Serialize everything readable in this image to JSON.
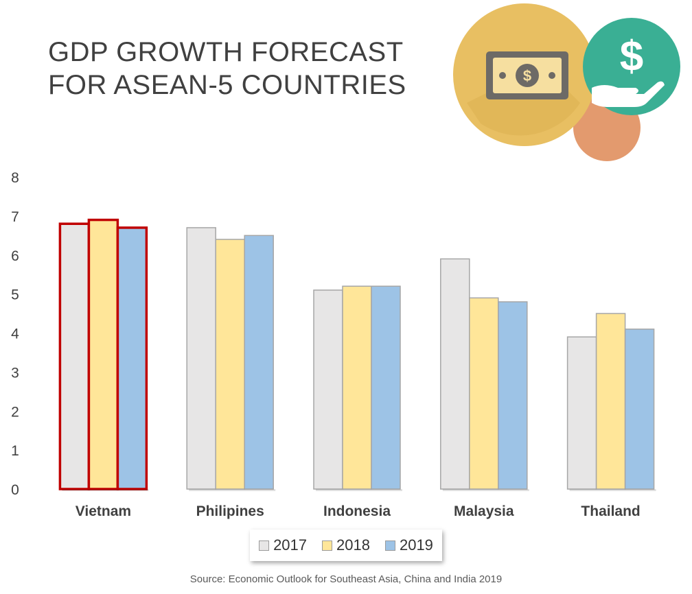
{
  "title": {
    "line1": "GDP GROWTH FORECAST",
    "line2": "FOR ASEAN-5 COUNTRIES"
  },
  "source": "Source: Economic Outlook for Southeast Asia, China and India 2019",
  "decoration": {
    "icons": [
      "banknote-dollar-icon",
      "hand-dollar-icon"
    ],
    "colors": [
      "#E8BF62",
      "#3AAF94",
      "#E39A6E"
    ]
  },
  "chart_data": {
    "type": "bar",
    "title": "GDP GROWTH FORECAST FOR ASEAN-5 COUNTRIES",
    "categories": [
      "Vietnam",
      "Philipines",
      "Indonesia",
      "Malaysia",
      "Thailand"
    ],
    "series": [
      {
        "name": "2017",
        "values": [
          6.8,
          6.7,
          5.1,
          5.9,
          3.9
        ],
        "color": "#E7E6E6"
      },
      {
        "name": "2018",
        "values": [
          6.9,
          6.4,
          5.2,
          4.9,
          4.5
        ],
        "color": "#FFE699"
      },
      {
        "name": "2019",
        "values": [
          6.7,
          6.5,
          5.2,
          4.8,
          4.1
        ],
        "color": "#9DC3E6"
      }
    ],
    "ylim": [
      0,
      8
    ],
    "yticks": [
      "0",
      "1",
      "2",
      "3",
      "4",
      "5",
      "6",
      "7",
      "8"
    ],
    "xlabel": "",
    "ylabel": "",
    "grid": false,
    "legend_position": "bottom",
    "highlight": {
      "category": "Vietnam",
      "border_color": "#C00000"
    }
  }
}
